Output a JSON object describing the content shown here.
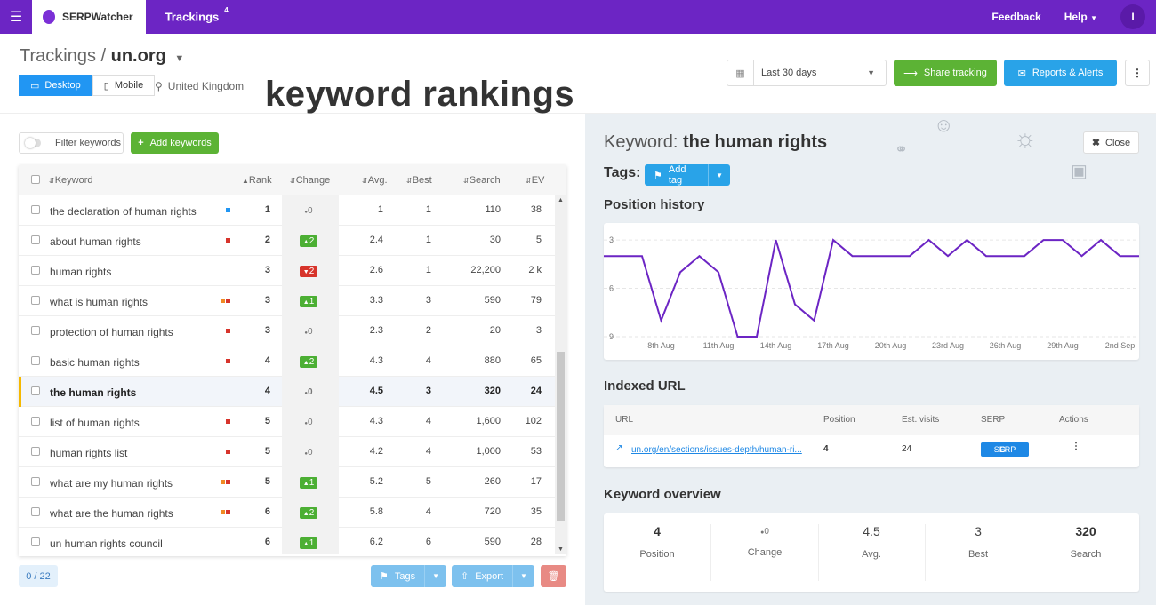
{
  "topbar": {
    "brand": "SERPWatcher",
    "nav_trackings": "Trackings",
    "trackings_count": "4",
    "feedback": "Feedback",
    "help": "Help",
    "avatar_initial": "I"
  },
  "header": {
    "breadcrumb_root": "Trackings /",
    "breadcrumb_domain": "un.org",
    "device_desktop": "Desktop",
    "device_mobile": "Mobile",
    "location": "United Kingdom",
    "annotation": "keyword rankings",
    "date_range": "Last 30 days",
    "share_label": "Share tracking",
    "reports_label": "Reports & Alerts"
  },
  "toolbar": {
    "filter_label": "Filter keywords",
    "add_label": "Add keywords"
  },
  "table": {
    "columns": [
      "Keyword",
      "Rank",
      "Change",
      "Avg.",
      "Best",
      "Search",
      "EV"
    ],
    "rows": [
      {
        "keyword": "the declaration of human rights",
        "rank": "1",
        "change": "0",
        "dir": "zero",
        "avg": "1",
        "best": "1",
        "search": "110",
        "ev": "38",
        "ind": [
          "#2196f3"
        ]
      },
      {
        "keyword": "about human rights",
        "rank": "2",
        "change": "2",
        "dir": "up",
        "avg": "2.4",
        "best": "1",
        "search": "30",
        "ev": "5",
        "ind": [
          "#d7342b"
        ]
      },
      {
        "keyword": "human rights",
        "rank": "3",
        "change": "2",
        "dir": "down",
        "avg": "2.6",
        "best": "1",
        "search": "22,200",
        "ev": "2 k",
        "ind": []
      },
      {
        "keyword": "what is human rights",
        "rank": "3",
        "change": "1",
        "dir": "up",
        "avg": "3.3",
        "best": "3",
        "search": "590",
        "ev": "79",
        "ind": [
          "#f08a24",
          "#d7342b"
        ]
      },
      {
        "keyword": "protection of human rights",
        "rank": "3",
        "change": "0",
        "dir": "zero",
        "avg": "2.3",
        "best": "2",
        "search": "20",
        "ev": "3",
        "ind": [
          "#d7342b"
        ]
      },
      {
        "keyword": "basic human rights",
        "rank": "4",
        "change": "2",
        "dir": "up",
        "avg": "4.3",
        "best": "4",
        "search": "880",
        "ev": "65",
        "ind": [
          "#d7342b"
        ]
      },
      {
        "keyword": "the human rights",
        "rank": "4",
        "change": "0",
        "dir": "zero",
        "avg": "4.5",
        "best": "3",
        "search": "320",
        "ev": "24",
        "ind": [],
        "selected": true
      },
      {
        "keyword": "list of human rights",
        "rank": "5",
        "change": "0",
        "dir": "zero",
        "avg": "4.3",
        "best": "4",
        "search": "1,600",
        "ev": "102",
        "ind": [
          "#d7342b"
        ]
      },
      {
        "keyword": "human rights list",
        "rank": "5",
        "change": "0",
        "dir": "zero",
        "avg": "4.2",
        "best": "4",
        "search": "1,000",
        "ev": "53",
        "ind": [
          "#d7342b"
        ]
      },
      {
        "keyword": "what are my human rights",
        "rank": "5",
        "change": "1",
        "dir": "up",
        "avg": "5.2",
        "best": "5",
        "search": "260",
        "ev": "17",
        "ind": [
          "#f08a24",
          "#d7342b"
        ]
      },
      {
        "keyword": "what are the human rights",
        "rank": "6",
        "change": "2",
        "dir": "up",
        "avg": "5.8",
        "best": "4",
        "search": "720",
        "ev": "35",
        "ind": [
          "#f08a24",
          "#d7342b"
        ]
      },
      {
        "keyword": "un human rights council",
        "rank": "6",
        "change": "1",
        "dir": "up",
        "avg": "6.2",
        "best": "6",
        "search": "590",
        "ev": "28",
        "ind": []
      }
    ]
  },
  "footer": {
    "count": "0 / 22",
    "tags_label": "Tags",
    "export_label": "Export"
  },
  "detail": {
    "keyword_prefix": "Keyword:",
    "keyword": "the human rights",
    "close_label": "Close",
    "tags_label": "Tags:",
    "add_tag_label": "Add tag",
    "position_history_title": "Position history",
    "indexed_url_title": "Indexed URL",
    "url_columns": [
      "URL",
      "Position",
      "Est. visits",
      "SERP",
      "Actions"
    ],
    "url_row": {
      "url": "un.org/en/sections/issues-depth/human-ri...",
      "position": "4",
      "visits": "24",
      "serp": "SERP"
    },
    "overview_title": "Keyword overview",
    "overview": [
      {
        "value": "4",
        "label": "Position"
      },
      {
        "value": "0",
        "label": "Change"
      },
      {
        "value": "4.5",
        "label": "Avg."
      },
      {
        "value": "3",
        "label": "Best"
      },
      {
        "value": "320",
        "label": "Search"
      }
    ]
  },
  "chart_data": {
    "type": "line",
    "x_tick_labels": [
      "8th Aug",
      "11th Aug",
      "14th Aug",
      "17th Aug",
      "20th Aug",
      "23rd Aug",
      "26th Aug",
      "29th Aug",
      "2nd Sep"
    ],
    "y_ticks": [
      3,
      6,
      9
    ],
    "ylim": [
      9,
      2.5
    ],
    "y_inverted": true,
    "series": [
      {
        "values": [
          4,
          4,
          4,
          8,
          5,
          4,
          5,
          9,
          9,
          3,
          7,
          8,
          3,
          4,
          4,
          4,
          4,
          3,
          4,
          3,
          4,
          4,
          4,
          3,
          3,
          4,
          3,
          4,
          4
        ],
        "color": "#6c25c4"
      }
    ]
  }
}
